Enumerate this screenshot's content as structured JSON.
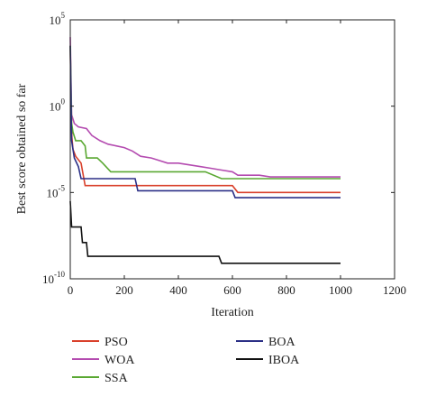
{
  "chart_data": {
    "type": "line",
    "title": "",
    "xlabel": "Iteration",
    "ylabel": "Best score obtained so far",
    "xlim": [
      0,
      1200
    ],
    "ylim_log10": [
      -10,
      5
    ],
    "yscale": "log",
    "x_ticks": [
      0,
      200,
      400,
      600,
      800,
      1000,
      1200
    ],
    "y_ticks": [
      {
        "exp": 5,
        "label": "10",
        "sup": "5"
      },
      {
        "exp": 0,
        "label": "10",
        "sup": "0"
      },
      {
        "exp": -5,
        "label": "10",
        "sup": "-5"
      },
      {
        "exp": -10,
        "label": "10",
        "sup": "-10"
      }
    ],
    "grid": false,
    "legend_position": "below",
    "series": [
      {
        "name": "PSO",
        "color": "#d9402b",
        "points": [
          [
            0,
            3.5
          ],
          [
            3,
            0
          ],
          [
            6,
            -1.8
          ],
          [
            10,
            -2.5
          ],
          [
            20,
            -2.9
          ],
          [
            40,
            -3.3
          ],
          [
            55,
            -4.6
          ],
          [
            60,
            -4.6
          ],
          [
            100,
            -4.6
          ],
          [
            250,
            -4.6
          ],
          [
            600,
            -4.6
          ],
          [
            620,
            -5.0
          ],
          [
            1000,
            -5.0
          ]
        ]
      },
      {
        "name": "WOA",
        "color": "#b44bb0",
        "points": [
          [
            0,
            4.0
          ],
          [
            5,
            -0.5
          ],
          [
            15,
            -1.0
          ],
          [
            30,
            -1.2
          ],
          [
            60,
            -1.3
          ],
          [
            80,
            -1.7
          ],
          [
            110,
            -2.0
          ],
          [
            140,
            -2.2
          ],
          [
            170,
            -2.3
          ],
          [
            200,
            -2.4
          ],
          [
            230,
            -2.6
          ],
          [
            260,
            -2.9
          ],
          [
            300,
            -3.0
          ],
          [
            320,
            -3.1
          ],
          [
            360,
            -3.3
          ],
          [
            400,
            -3.3
          ],
          [
            440,
            -3.4
          ],
          [
            480,
            -3.5
          ],
          [
            520,
            -3.6
          ],
          [
            560,
            -3.7
          ],
          [
            600,
            -3.8
          ],
          [
            620,
            -4.0
          ],
          [
            700,
            -4.0
          ],
          [
            740,
            -4.1
          ],
          [
            1000,
            -4.1
          ]
        ]
      },
      {
        "name": "SSA",
        "color": "#5aa832",
        "points": [
          [
            0,
            3.5
          ],
          [
            5,
            -1.0
          ],
          [
            10,
            -1.5
          ],
          [
            20,
            -2.0
          ],
          [
            40,
            -2.0
          ],
          [
            55,
            -2.3
          ],
          [
            60,
            -3.0
          ],
          [
            100,
            -3.0
          ],
          [
            120,
            -3.3
          ],
          [
            150,
            -3.8
          ],
          [
            500,
            -3.8
          ],
          [
            560,
            -4.2
          ],
          [
            1000,
            -4.2
          ]
        ]
      },
      {
        "name": "BOA",
        "color": "#2b2f86",
        "points": [
          [
            0,
            3.5
          ],
          [
            5,
            -2.0
          ],
          [
            15,
            -3.0
          ],
          [
            30,
            -3.5
          ],
          [
            40,
            -4.2
          ],
          [
            100,
            -4.2
          ],
          [
            240,
            -4.2
          ],
          [
            250,
            -4.9
          ],
          [
            600,
            -4.9
          ],
          [
            610,
            -5.3
          ],
          [
            1000,
            -5.3
          ]
        ]
      },
      {
        "name": "IBOA",
        "color": "#111111",
        "points": [
          [
            0,
            -5.5
          ],
          [
            5,
            -7.0
          ],
          [
            40,
            -7.0
          ],
          [
            45,
            -7.9
          ],
          [
            60,
            -7.9
          ],
          [
            65,
            -8.7
          ],
          [
            550,
            -8.7
          ],
          [
            560,
            -9.1
          ],
          [
            1000,
            -9.1
          ]
        ]
      }
    ]
  }
}
